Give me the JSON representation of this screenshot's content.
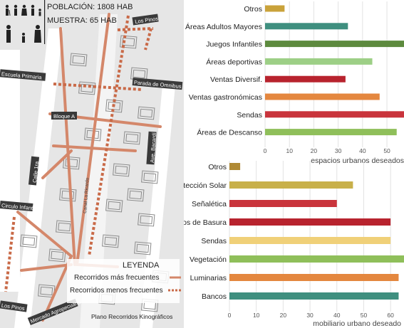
{
  "map": {
    "population": "POBLACIÓN: 1808 HAB",
    "sample": "MUESTRA: 65 HAB",
    "streets": {
      "los_pinos_top": "Los Pinos",
      "escuela_primaria": "Escuela Primaria",
      "parada_omnibus": "Parada de Omnibus",
      "bloque_a": "Bloque A",
      "ave_bacardi": "Ave. Bacardí",
      "calle_1ra": "Calle 1ra",
      "canal": "Canal La Ricardo",
      "circulo_infantil": "Circulo Infantil",
      "los_pinos_bottom": "Los Pinos",
      "mercado": "Mercado Agropecuario"
    },
    "legend": {
      "title": "LEYENDA",
      "frequent": "Recorridos más frecuentes",
      "less_frequent": "Recorridos menos frecuentes",
      "plan_caption": "Plano Recorridos Kinográficos"
    },
    "colors": {
      "route": "#d4876a",
      "route_dashed": "#c96a48",
      "building": "#9a9a9a",
      "ground": "#dcdcdc"
    }
  },
  "chart_data": [
    {
      "type": "bar",
      "orientation": "horizontal",
      "title": "",
      "xlabel": "espacios urbanos deseados",
      "ylabel": "",
      "xlim": [
        0,
        57
      ],
      "xticks": [
        0,
        10,
        20,
        30,
        40,
        50
      ],
      "grid": true,
      "categories": [
        "Otros",
        "Áreas Adultos Mayores",
        "Juegos Infantiles",
        "Áreas deportivas",
        "Ventas Diversif.",
        "Ventas gastronómicas",
        "Sendas",
        "Áreas de Descanso"
      ],
      "values": [
        8,
        34,
        57,
        44,
        33,
        47,
        57,
        54
      ],
      "colors": [
        "#c9a23a",
        "#3f8f7f",
        "#5d8a3e",
        "#9dcf86",
        "#b8232e",
        "#e4873f",
        "#c9343c",
        "#8fbf5a"
      ]
    },
    {
      "type": "bar",
      "orientation": "horizontal",
      "title": "",
      "xlabel": "mobiliario urbano deseado",
      "ylabel": "",
      "xlim": [
        0,
        65
      ],
      "xticks": [
        0,
        10,
        20,
        30,
        40,
        50,
        60
      ],
      "grid": true,
      "categories": [
        "Otros",
        "Protección Solar",
        "Señalética",
        "Cestos de Basura",
        "Sendas",
        "Vegetación",
        "Luminarias",
        "Bancos"
      ],
      "values": [
        4,
        46,
        40,
        60,
        60,
        65,
        63,
        63
      ],
      "colors": [
        "#b08a35",
        "#c8b04a",
        "#c9343c",
        "#b8232e",
        "#f0d078",
        "#8fbf5a",
        "#e4873f",
        "#3f8f7f"
      ]
    }
  ]
}
